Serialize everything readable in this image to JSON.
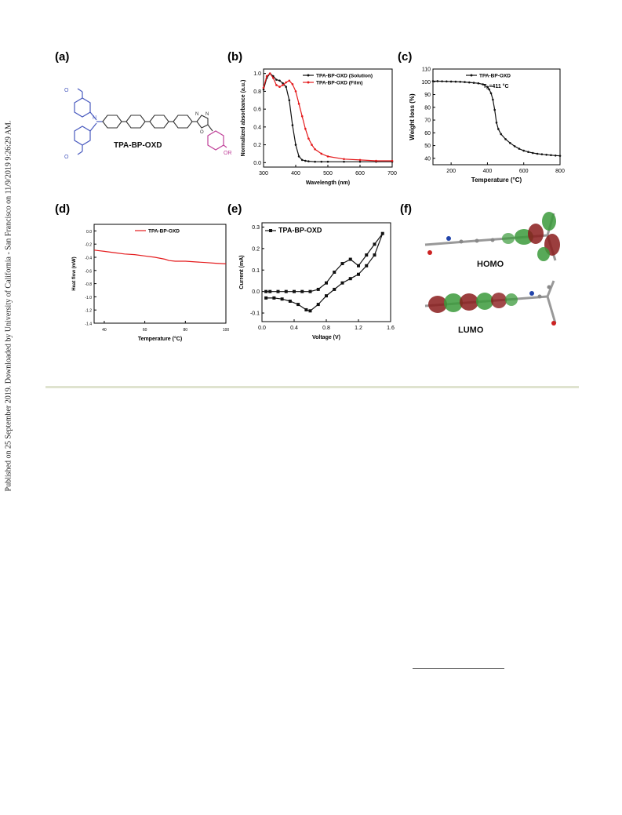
{
  "sidebar_text": "Published on 25 September 2019. Downloaded by University of California - San Francisco on 11/9/2019 9:26:29 AM.",
  "panels": {
    "a": {
      "label": "(a)",
      "molecule_name": "TPA-BP-OXD",
      "atom_n": "N",
      "atom_o": "O",
      "oxadiazole_n": "N",
      "oxadiazole_n2": "N",
      "oxadiazole_o": "O",
      "or_group": "OR"
    },
    "f": {
      "label": "(f)",
      "homo": "HOMO",
      "lumo": "LUMO"
    }
  },
  "colors": {
    "solution": "#111111",
    "film": "#e41a1c",
    "tpa_blue": "#4a5bbf",
    "or_magenta": "#c0429a"
  },
  "chart_data": [
    {
      "id": "b",
      "label": "(b)",
      "type": "line",
      "xlabel": "Wavelength (nm)",
      "ylabel": "Normalized absorbance (a.u.)",
      "xlim": [
        300,
        700
      ],
      "ylim": [
        -0.05,
        1.05
      ],
      "xticks": [
        "300",
        "400",
        "500",
        "600",
        "700"
      ],
      "yticks": [
        "0.0",
        "0.2",
        "0.4",
        "0.6",
        "0.8",
        "1.0"
      ],
      "legend_position": "top-right",
      "series": [
        {
          "name": "TPA-BP-OXD (Solution)",
          "color": "#111111",
          "x": [
            300,
            310,
            320,
            330,
            340,
            350,
            360,
            370,
            380,
            390,
            400,
            410,
            420,
            430,
            440,
            460,
            480,
            500,
            550,
            600,
            650,
            700
          ],
          "y": [
            0.82,
            0.95,
            1.0,
            0.97,
            0.93,
            0.92,
            0.89,
            0.85,
            0.7,
            0.42,
            0.2,
            0.07,
            0.03,
            0.02,
            0.015,
            0.01,
            0.01,
            0.01,
            0.01,
            0.01,
            0.01,
            0.01
          ]
        },
        {
          "name": "TPA-BP-OXD (Film)",
          "color": "#e41a1c",
          "x": [
            300,
            310,
            320,
            330,
            340,
            350,
            360,
            370,
            380,
            390,
            400,
            410,
            420,
            430,
            440,
            450,
            460,
            480,
            500,
            550,
            600,
            650,
            700
          ],
          "y": [
            0.84,
            0.97,
            1.0,
            0.95,
            0.87,
            0.85,
            0.87,
            0.9,
            0.92,
            0.88,
            0.8,
            0.66,
            0.52,
            0.38,
            0.27,
            0.2,
            0.15,
            0.1,
            0.07,
            0.04,
            0.03,
            0.02,
            0.02
          ]
        }
      ]
    },
    {
      "id": "c",
      "label": "(c)",
      "type": "line",
      "xlabel": "Temperature (°C)",
      "ylabel": "Weight loss (%)",
      "xlim": [
        100,
        800
      ],
      "ylim": [
        35,
        110
      ],
      "xticks": [
        "200",
        "400",
        "600",
        "800"
      ],
      "yticks": [
        "40",
        "50",
        "60",
        "70",
        "80",
        "90",
        "100",
        "110"
      ],
      "legend_position": "top-right",
      "annotation_td": "T",
      "annotation_sub": "d",
      "annotation_value": "=411 °C",
      "series": [
        {
          "name": "TPA-BP-OXD",
          "color": "#111111",
          "x": [
            100,
            125,
            150,
            175,
            200,
            225,
            250,
            275,
            300,
            325,
            350,
            375,
            400,
            410,
            420,
            430,
            440,
            450,
            460,
            475,
            500,
            525,
            550,
            575,
            600,
            625,
            650,
            675,
            700,
            725,
            750,
            775,
            800
          ],
          "y": [
            100.5,
            100.5,
            100.4,
            100.3,
            100.2,
            100.1,
            100,
            99.8,
            99.5,
            99.2,
            98.8,
            98,
            96,
            94,
            91,
            86,
            78,
            68,
            63,
            59,
            55,
            52,
            49.5,
            47.5,
            46,
            45,
            44.2,
            43.6,
            43.2,
            42.8,
            42.5,
            42.2,
            42
          ]
        }
      ]
    },
    {
      "id": "d",
      "label": "(d)",
      "type": "line",
      "xlabel": "Temperature (°C)",
      "ylabel": "Heat flow (mW)",
      "xlim": [
        35,
        100
      ],
      "ylim": [
        -1.4,
        0.1
      ],
      "xticks": [
        "40",
        "60",
        "80",
        "100"
      ],
      "yticks": [
        "0.0",
        "-0.2",
        "-0.4",
        "-0.6",
        "-0.8",
        "-1.0",
        "-1.2",
        "-1.4"
      ],
      "legend_position": "top-right",
      "series": [
        {
          "name": "TPA-BP-OXD",
          "color": "#e41a1c",
          "x": [
            35,
            40,
            45,
            50,
            55,
            60,
            65,
            70,
            72,
            75,
            80,
            85,
            90,
            95,
            100
          ],
          "y": [
            -0.29,
            -0.31,
            -0.33,
            -0.35,
            -0.36,
            -0.38,
            -0.4,
            -0.43,
            -0.45,
            -0.46,
            -0.46,
            -0.47,
            -0.48,
            -0.49,
            -0.5
          ]
        }
      ]
    },
    {
      "id": "e",
      "label": "(e)",
      "type": "line",
      "xlabel": "Voltage (V)",
      "ylabel": "Current (mA)",
      "xlim": [
        0,
        1.6
      ],
      "ylim": [
        -0.14,
        0.32
      ],
      "xticks": [
        "0.0",
        "0.4",
        "0.8",
        "1.2",
        "1.6"
      ],
      "yticks": [
        "-0.1",
        "0.0",
        "0.1",
        "0.2",
        "0.3"
      ],
      "legend_position": "top-left",
      "series": [
        {
          "name": "TPA-BP-OXD",
          "color": "#111111",
          "x": [
            0.05,
            0.15,
            0.25,
            0.35,
            0.45,
            0.55,
            0.6,
            0.7,
            0.8,
            0.9,
            1.0,
            1.1,
            1.2,
            1.3,
            1.4,
            1.5,
            1.4,
            1.3,
            1.2,
            1.1,
            1.0,
            0.9,
            0.8,
            0.7,
            0.6,
            0.5,
            0.4,
            0.3,
            0.2,
            0.1,
            0.05
          ],
          "y": [
            -0.03,
            -0.03,
            -0.035,
            -0.045,
            -0.06,
            -0.085,
            -0.09,
            -0.06,
            -0.02,
            0.01,
            0.04,
            0.06,
            0.08,
            0.12,
            0.17,
            0.27,
            0.22,
            0.17,
            0.12,
            0.15,
            0.13,
            0.09,
            0.04,
            0.01,
            0.0,
            0.0,
            0.0,
            0.0,
            0.0,
            0.0,
            0.0
          ]
        }
      ]
    }
  ]
}
